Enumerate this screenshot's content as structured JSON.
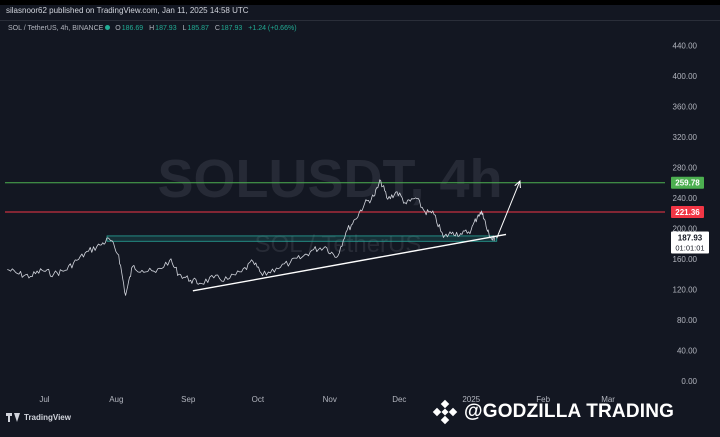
{
  "publisher_line": "silasnoor62 published on TradingView.com, Jan 11, 2025 14:58 UTC",
  "legend": {
    "symbol": "SOL / TetherUS, 4h, BINANCE",
    "o_label": "O",
    "o_value": "186.69",
    "h_label": "H",
    "h_value": "187.93",
    "l_label": "L",
    "l_value": "185.87",
    "c_label": "C",
    "c_value": "187.93",
    "change": "+1.24 (+0.66%)"
  },
  "watermark": {
    "main": "SOLUSDT, 4h",
    "sub": "SOL / TetherUS"
  },
  "branding": {
    "tradingview": "TradingView",
    "author": "@GODZILLA TRADING"
  },
  "colors": {
    "background": "#131722",
    "price_line": "#d1d4dc",
    "resistance": "#f23645",
    "target": "#4caf50",
    "support_zone": "#26a69a",
    "current_price_tag": "#ffffff"
  },
  "chart_data": {
    "type": "line",
    "symbol": "SOLUSDT",
    "timeframe": "4h",
    "exchange": "BINANCE",
    "x_ticks": [
      "Jul",
      "Aug",
      "Sep",
      "Oct",
      "Nov",
      "Dec",
      "2025",
      "Feb",
      "Mar"
    ],
    "y_ticks": [
      440,
      400,
      360,
      320,
      280,
      240,
      200,
      160,
      120,
      80,
      40,
      0
    ],
    "y_tick_labels": [
      "440.00",
      "400.00",
      "360.00",
      "320.00",
      "280.00",
      "240.00",
      "200.00",
      "160.00",
      "120.00",
      "80.00",
      "40.00",
      "0.00"
    ],
    "ylim": [
      -12,
      460
    ],
    "grid": false,
    "series": [
      {
        "points": [
          [
            "2024-06-15",
            146
          ],
          [
            "2024-06-20",
            140
          ],
          [
            "2024-06-25",
            137
          ],
          [
            "2024-06-30",
            145
          ],
          [
            "2024-07-05",
            140
          ],
          [
            "2024-07-10",
            145
          ],
          [
            "2024-07-15",
            158
          ],
          [
            "2024-07-20",
            170
          ],
          [
            "2024-07-25",
            178
          ],
          [
            "2024-07-29",
            186
          ],
          [
            "2024-08-02",
            165
          ],
          [
            "2024-08-05",
            112
          ],
          [
            "2024-08-08",
            150
          ],
          [
            "2024-08-12",
            145
          ],
          [
            "2024-08-18",
            142
          ],
          [
            "2024-08-24",
            158
          ],
          [
            "2024-08-28",
            140
          ],
          [
            "2024-09-02",
            132
          ],
          [
            "2024-09-06",
            128
          ],
          [
            "2024-09-12",
            135
          ],
          [
            "2024-09-18",
            133
          ],
          [
            "2024-09-24",
            143
          ],
          [
            "2024-09-29",
            156
          ],
          [
            "2024-10-03",
            138
          ],
          [
            "2024-10-09",
            148
          ],
          [
            "2024-10-15",
            155
          ],
          [
            "2024-10-20",
            162
          ],
          [
            "2024-10-25",
            172
          ],
          [
            "2024-10-30",
            176
          ],
          [
            "2024-11-04",
            162
          ],
          [
            "2024-11-08",
            195
          ],
          [
            "2024-11-12",
            212
          ],
          [
            "2024-11-16",
            232
          ],
          [
            "2024-11-20",
            242
          ],
          [
            "2024-11-23",
            262
          ],
          [
            "2024-11-26",
            238
          ],
          [
            "2024-11-30",
            248
          ],
          [
            "2024-12-04",
            232
          ],
          [
            "2024-12-08",
            240
          ],
          [
            "2024-12-12",
            222
          ],
          [
            "2024-12-16",
            218
          ],
          [
            "2024-12-20",
            188
          ],
          [
            "2024-12-24",
            195
          ],
          [
            "2024-12-28",
            192
          ],
          [
            "2025-01-01",
            198
          ],
          [
            "2025-01-04",
            218
          ],
          [
            "2025-01-06",
            220
          ],
          [
            "2025-01-08",
            196
          ],
          [
            "2025-01-10",
            185
          ],
          [
            "2025-01-11",
            187.93
          ]
        ]
      }
    ],
    "horizontal_levels": [
      {
        "value": 259.78,
        "label": "259.78",
        "color": "#4caf50"
      },
      {
        "value": 221.36,
        "label": "221.36",
        "color": "#f23645"
      }
    ],
    "support_zone": {
      "from": "2024-07-28",
      "to": "2025-01-12",
      "low": 183,
      "high": 190
    },
    "trendline": {
      "from": [
        "2024-09-03",
        118
      ],
      "to": [
        "2025-01-16",
        192
      ]
    },
    "projection_arrow": {
      "from": [
        "2025-01-12",
        187
      ],
      "to": [
        "2025-01-22",
        262
      ]
    },
    "current_price": {
      "value": 187.93,
      "label": "187.93",
      "countdown": "01:01:01"
    }
  }
}
